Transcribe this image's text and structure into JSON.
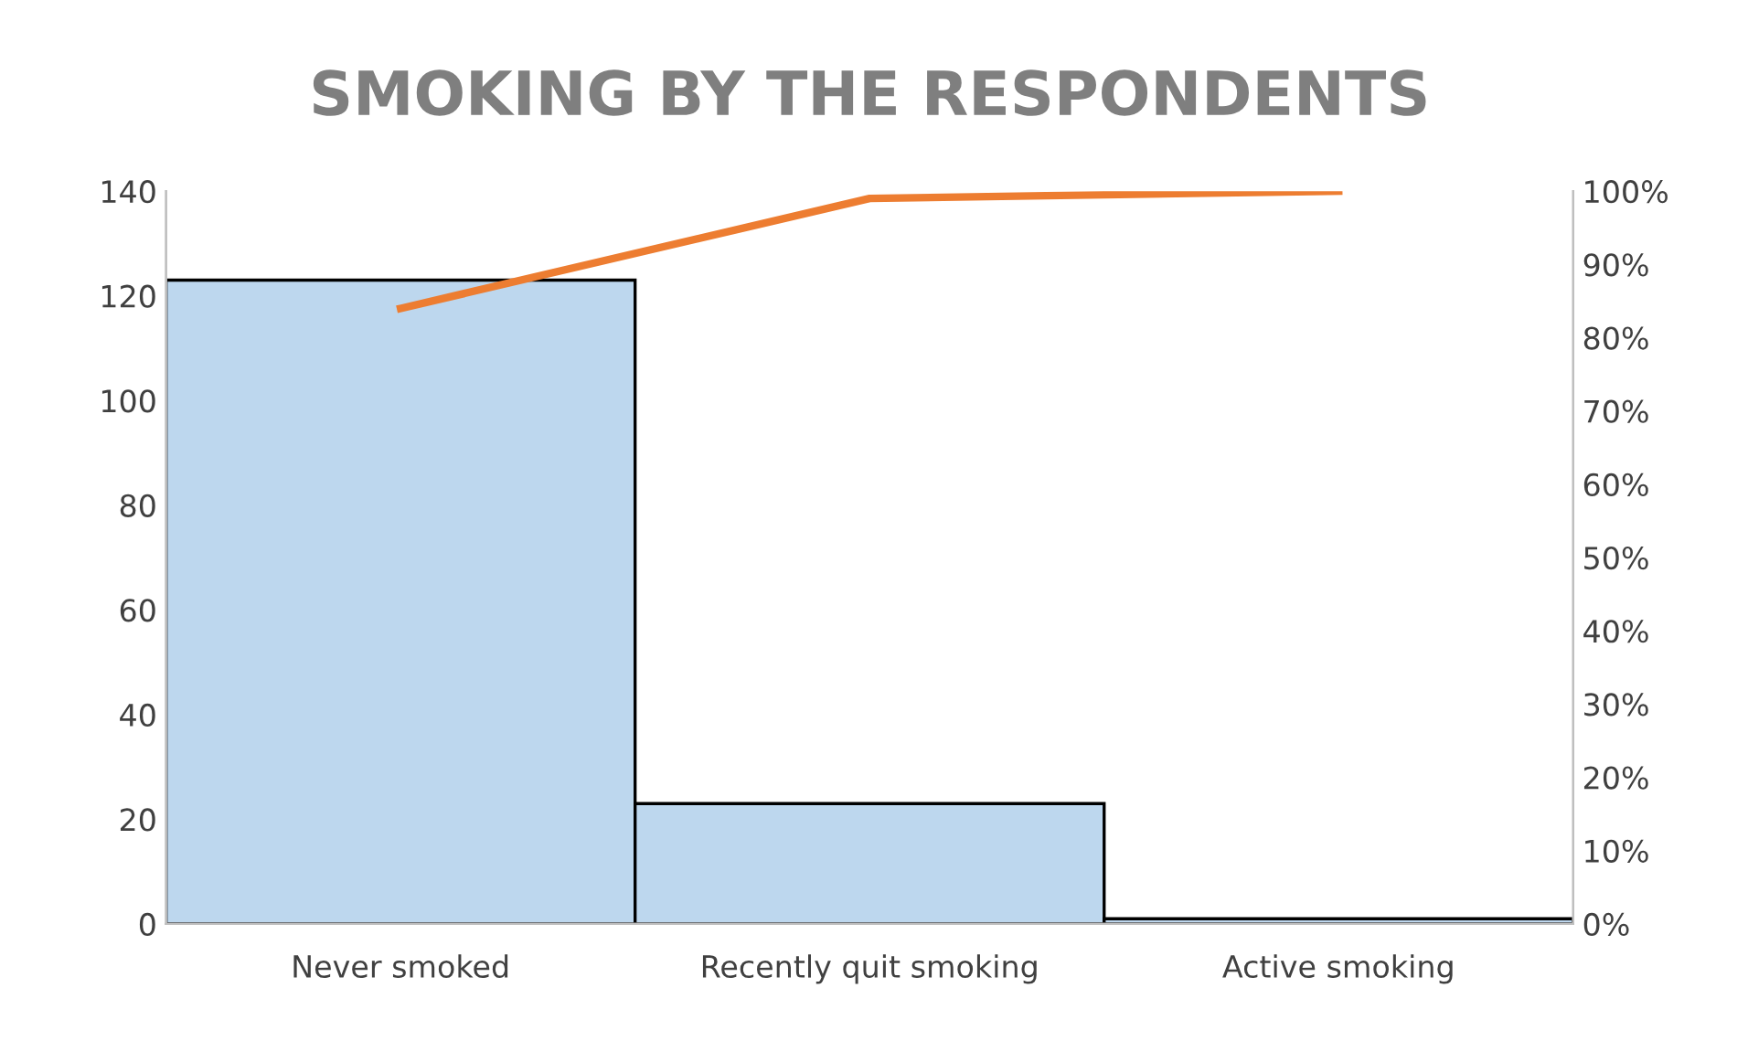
{
  "chart_data": {
    "type": "bar",
    "title": "SMOKING BY THE RESPONDENTS",
    "categories": [
      "Never smoked",
      "Recently quit smoking",
      "Active smoking"
    ],
    "series": [
      {
        "color": "#bdd7ee",
        "values": [
          123,
          23,
          1
        ]
      },
      {
        "type": "line",
        "color": "#ed7d31",
        "axis": "y2",
        "values": [
          84,
          99,
          100
        ]
      }
    ],
    "ylim": [
      0,
      140
    ],
    "yticks": [
      0,
      20,
      40,
      60,
      80,
      100,
      120,
      140
    ],
    "y2lim": [
      0,
      100
    ],
    "y2ticks": [
      {
        "value": 0,
        "label": "0%"
      },
      {
        "value": 10,
        "label": "10%"
      },
      {
        "value": 20,
        "label": "20%"
      },
      {
        "value": 30,
        "label": "30%"
      },
      {
        "value": 40,
        "label": "40%"
      },
      {
        "value": 50,
        "label": "50%"
      },
      {
        "value": 60,
        "label": "60%"
      },
      {
        "value": 70,
        "label": "70%"
      },
      {
        "value": 80,
        "label": "80%"
      },
      {
        "value": 90,
        "label": "90%"
      },
      {
        "value": 100,
        "label": "100%"
      }
    ],
    "grid": false,
    "marker": "none",
    "line_style": "solid"
  }
}
